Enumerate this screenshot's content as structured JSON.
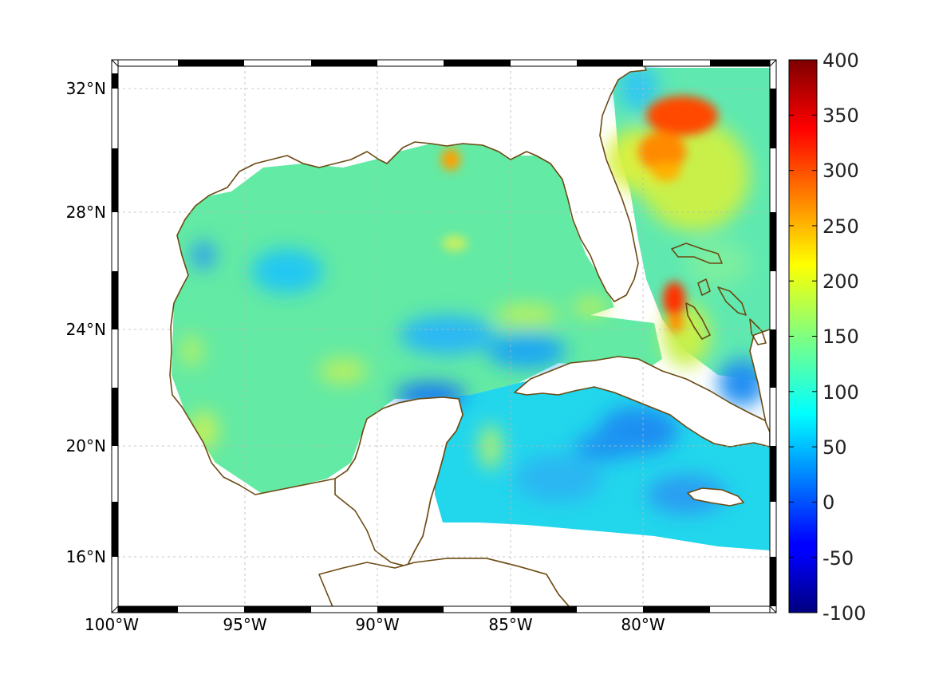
{
  "map": {
    "lon_ticks": [
      "100°W",
      "95°W",
      "90°W",
      "85°W",
      "80°W"
    ],
    "lat_ticks": [
      "32°N",
      "28°N",
      "24°N",
      "20°N",
      "16°N"
    ],
    "lon_range": [
      -100,
      -75
    ],
    "lat_range": [
      14.3,
      33
    ],
    "colorbar": {
      "colormap": "jet",
      "ticks": [
        "400",
        "350",
        "300",
        "250",
        "200",
        "150",
        "100",
        "50",
        "0",
        "-50",
        "-100"
      ],
      "range": [
        -100,
        400
      ]
    },
    "colors": {
      "coastline": "#6b4a12",
      "land": "#ffffff"
    }
  }
}
